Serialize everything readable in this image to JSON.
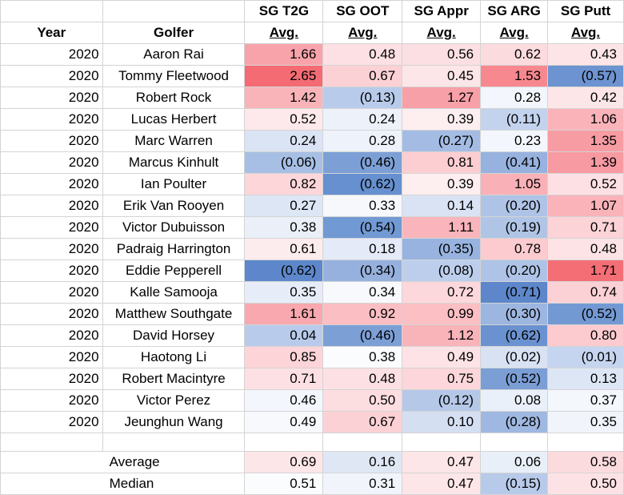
{
  "headers": {
    "year": "Year",
    "golfer": "Golfer",
    "top": [
      "SG T2G",
      "SG OOT",
      "SG Appr",
      "SG ARG",
      "SG Putt"
    ],
    "bottom": [
      "Avg.",
      "Avg.",
      "Avg.",
      "Avg.",
      "Avg."
    ]
  },
  "rows": [
    {
      "year": "2020",
      "golfer": "Aaron Rai",
      "vals": [
        "1.66",
        "0.48",
        "0.56",
        "0.62",
        "0.43"
      ],
      "colors": [
        "#f8a3aa",
        "#fce0e3",
        "#fcdfe2",
        "#fcdbde",
        "#fde5e7"
      ]
    },
    {
      "year": "2020",
      "golfer": "Tommy Fleetwood",
      "vals": [
        "2.65",
        "0.67",
        "0.45",
        "1.53",
        "(0.57)"
      ],
      "colors": [
        "#f46b73",
        "#fcd1d5",
        "#fde6e8",
        "#f8888f",
        "#6d93d0"
      ]
    },
    {
      "year": "2020",
      "golfer": "Robert Rock",
      "vals": [
        "1.42",
        "(0.13)",
        "1.27",
        "0.28",
        "0.42"
      ],
      "colors": [
        "#f9b4ba",
        "#b9cbea",
        "#f8a0a7",
        "#f3f6fc",
        "#fde6e8"
      ]
    },
    {
      "year": "2020",
      "golfer": "Lucas Herbert",
      "vals": [
        "0.52",
        "0.24",
        "0.39",
        "(0.11)",
        "1.06"
      ],
      "colors": [
        "#fde9eb",
        "#edf1fa",
        "#fdeef0",
        "#c3d3ee",
        "#f9b3b9"
      ]
    },
    {
      "year": "2020",
      "golfer": "Marc Warren",
      "vals": [
        "0.24",
        "0.28",
        "(0.27)",
        "0.23",
        "1.35"
      ],
      "colors": [
        "#dbe4f4",
        "#eef2fa",
        "#a4bce3",
        "#f3f6fc",
        "#f79ca3"
      ]
    },
    {
      "year": "2020",
      "golfer": "Marcus Kinhult",
      "vals": [
        "(0.06)",
        "(0.46)",
        "0.81",
        "(0.41)",
        "1.39"
      ],
      "colors": [
        "#a7bfe4",
        "#7c9fd6",
        "#fccdd1",
        "#97b2de",
        "#f79aa1"
      ]
    },
    {
      "year": "2020",
      "golfer": "Ian Poulter",
      "vals": [
        "0.82",
        "(0.62)",
        "0.39",
        "1.05",
        "0.52"
      ],
      "colors": [
        "#fdd6d9",
        "#6690cf",
        "#fdeef0",
        "#f9b1b7",
        "#fde0e3"
      ]
    },
    {
      "year": "2020",
      "golfer": "Erik Van Rooyen",
      "vals": [
        "0.27",
        "0.33",
        "0.14",
        "(0.20)",
        "1.07"
      ],
      "colors": [
        "#dde6f5",
        "#f6f8fc",
        "#dae3f4",
        "#aec3e6",
        "#f9b3b9"
      ]
    },
    {
      "year": "2020",
      "golfer": "Victor Dubuisson",
      "vals": [
        "0.38",
        "(0.54)",
        "1.11",
        "(0.19)",
        "0.71"
      ],
      "colors": [
        "#eaeff8",
        "#7199d3",
        "#f9b5bb",
        "#b0c5e6",
        "#fcd3d7"
      ]
    },
    {
      "year": "2020",
      "golfer": "Padraig Harrington",
      "vals": [
        "0.61",
        "0.18",
        "(0.35)",
        "0.78",
        "0.48"
      ],
      "colors": [
        "#fdecee",
        "#e4eaf7",
        "#98b3df",
        "#fbcbcf",
        "#fde3e6"
      ]
    },
    {
      "year": "2020",
      "golfer": "Eddie Pepperell",
      "vals": [
        "(0.62)",
        "(0.34)",
        "(0.08)",
        "(0.20)",
        "1.71"
      ],
      "colors": [
        "#5d87ca",
        "#96b1de",
        "#bdceec",
        "#aec3e6",
        "#f46e76"
      ]
    },
    {
      "year": "2020",
      "golfer": "Kalle Samooja",
      "vals": [
        "0.35",
        "0.34",
        "0.72",
        "(0.71)",
        "0.74"
      ],
      "colors": [
        "#e6edf8",
        "#f7f9fd",
        "#fcd8dc",
        "#5d87ca",
        "#fcd1d5"
      ]
    },
    {
      "year": "2020",
      "golfer": "Matthew Southgate",
      "vals": [
        "1.61",
        "0.92",
        "0.99",
        "(0.30)",
        "(0.52)"
      ],
      "colors": [
        "#f8a8ae",
        "#fbbec3",
        "#fbbfc4",
        "#9cb6e0",
        "#7399d3"
      ]
    },
    {
      "year": "2020",
      "golfer": "David Horsey",
      "vals": [
        "0.04",
        "(0.46)",
        "1.12",
        "(0.62)",
        "0.80"
      ],
      "colors": [
        "#b9cbea",
        "#7c9fd6",
        "#f9b4ba",
        "#6b92d0",
        "#fccbcf"
      ]
    },
    {
      "year": "2020",
      "golfer": "Haotong Li",
      "vals": [
        "0.85",
        "0.38",
        "0.49",
        "(0.02)",
        "(0.01)"
      ],
      "colors": [
        "#fdd4d8",
        "#fbfcfe",
        "#fde3e6",
        "#d8e2f3",
        "#c6d5ef"
      ]
    },
    {
      "year": "2020",
      "golfer": "Robert Macintyre",
      "vals": [
        "0.71",
        "0.48",
        "0.75",
        "(0.52)",
        "0.13"
      ],
      "colors": [
        "#fde0e3",
        "#fce0e3",
        "#fcd6da",
        "#7b9ed5",
        "#dde6f5"
      ]
    },
    {
      "year": "2020",
      "golfer": "Victor Perez",
      "vals": [
        "0.46",
        "0.50",
        "(0.12)",
        "0.08",
        "0.37"
      ],
      "colors": [
        "#f3f6fc",
        "#fcdde0",
        "#b5c8e8",
        "#eaf0f9",
        "#f4f7fc"
      ]
    },
    {
      "year": "2020",
      "golfer": "Jeunghun Wang",
      "vals": [
        "0.49",
        "0.67",
        "0.10",
        "(0.28)",
        "0.35"
      ],
      "colors": [
        "#f7f9fd",
        "#fcd1d5",
        "#d4dff2",
        "#9fb8e1",
        "#f1f5fb"
      ]
    }
  ],
  "stats": [
    {
      "label": "Average",
      "vals": [
        "0.69",
        "0.16",
        "0.47",
        "0.06",
        "0.58"
      ],
      "colors": [
        "#fde6e8",
        "#dfe7f5",
        "#fde6e8",
        "#e9eff8",
        "#fcdbde"
      ]
    },
    {
      "label": "Median",
      "vals": [
        "0.51",
        "0.31",
        "0.47",
        "(0.15)",
        "0.50"
      ],
      "colors": [
        "#fbfcfe",
        "#f1f5fb",
        "#fde6e8",
        "#b8cae9",
        "#fde2e5"
      ]
    }
  ]
}
